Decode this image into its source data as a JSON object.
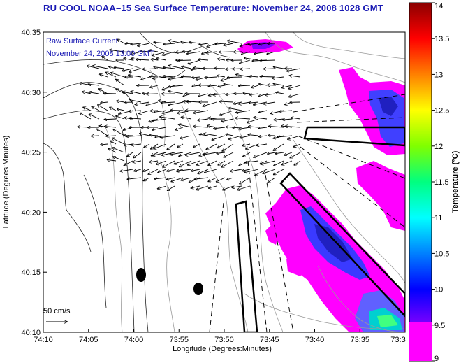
{
  "title": "RU COOL  NOAA–15  Sea Surface Temperature:  November 24, 2008 1028 GMT",
  "legend": {
    "line1": "Raw Surface Current",
    "line2": "November 24, 2008 13:00 GMT"
  },
  "scale_label": "50 cm/s",
  "x_axis": {
    "label": "Longitude (Degrees:Minutes)",
    "ticks": [
      "74:10",
      "74:05",
      "74:00",
      "73:55",
      "73:50",
      "73:45",
      "73:40",
      "73:35",
      "73:3"
    ]
  },
  "y_axis": {
    "label": "Latitude (Degrees:Minutes)",
    "ticks": [
      "40:35",
      "40:30",
      "40:25",
      "40:20",
      "40:15",
      "40:10"
    ]
  },
  "colorbar": {
    "label": "Temperature (°C)",
    "ticks": [
      "14",
      "13.5",
      "13",
      "12.5",
      "12",
      "11.5",
      "11",
      "10.5",
      "10",
      "9.5",
      "9"
    ],
    "colors": [
      "#8b0000",
      "#ff0000",
      "#ff8000",
      "#ffff00",
      "#80ff00",
      "#00ff80",
      "#00ffff",
      "#0080ff",
      "#0000ff",
      "#8000ff",
      "#ff00ff"
    ]
  },
  "colors": {
    "title": "#1a1ab4",
    "land_line": "#000000",
    "bathymetry": "#999999",
    "sst_low": "#ff00ff",
    "sst_mid": "#4040ff"
  }
}
